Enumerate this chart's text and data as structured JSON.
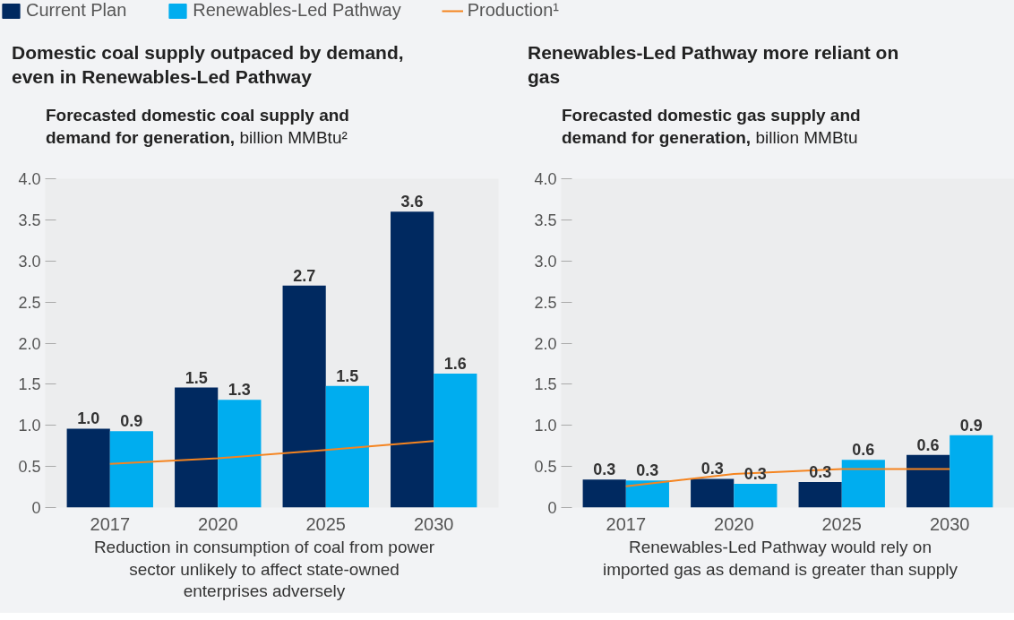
{
  "chart_data": [
    {
      "type": "bar",
      "title": "Domestic coal supply outpaced by demand, even in Renewables-Led Pathway",
      "subtitle": "Forecasted domestic coal supply and demand for generation,",
      "ylabel": "billion MMBtu²",
      "categories": [
        "2017",
        "2020",
        "2025",
        "2030"
      ],
      "series": [
        {
          "name": "Current Plan",
          "color": "#002960",
          "values": [
            0.96,
            1.46,
            2.7,
            3.6
          ],
          "value_labels": [
            "1.0",
            "1.5",
            "2.7",
            "3.6"
          ]
        },
        {
          "name": "Renewables-Led Pathway",
          "color": "#00adef",
          "values": [
            0.93,
            1.31,
            1.48,
            1.63
          ],
          "value_labels": [
            "0.9",
            "1.3",
            "1.5",
            "1.6"
          ]
        },
        {
          "name": "Production¹",
          "type": "line",
          "color": "#f5841f",
          "values": [
            0.53,
            0.6,
            0.7,
            0.81
          ]
        }
      ],
      "ylim": [
        0,
        4
      ],
      "yticks": [
        0,
        {
          "value": 0.5,
          "label": "0.5"
        },
        {
          "value": 1,
          "label": "1.0"
        },
        {
          "value": 1.5,
          "label": "1.5"
        },
        {
          "value": 2,
          "label": "2.0"
        },
        {
          "value": 2.5,
          "label": "2.5"
        },
        {
          "value": 3,
          "label": "3.0"
        },
        {
          "value": 3.5,
          "label": "3.5"
        },
        {
          "value": 4,
          "label": "4.0"
        }
      ],
      "grid": false,
      "legend": "top",
      "annotations": [
        "Reduction in consumption of coal from power sector unlikely to affect state-owned enterprises adversely"
      ]
    },
    {
      "type": "bar",
      "title": "Renewables-Led Pathway more reliant on gas",
      "subtitle": "Forecasted domestic gas supply and demand for generation,",
      "ylabel": "billion MMBtu",
      "categories": [
        "2017",
        "2020",
        "2025",
        "2030"
      ],
      "series": [
        {
          "color": "#002960",
          "values": [
            0.34,
            0.35,
            0.31,
            0.64
          ],
          "value_labels": [
            "0.3",
            "0.3",
            "0.3",
            "0.6"
          ]
        },
        {
          "color": "#00adef",
          "values": [
            0.33,
            0.29,
            0.58,
            0.88
          ],
          "value_labels": [
            "0.3",
            "0.3",
            "0.6",
            "0.9"
          ]
        },
        {
          "type": "line",
          "color": "#f5841f",
          "values": [
            0.26,
            0.41,
            0.47,
            0.47
          ]
        }
      ],
      "ylim": [
        0,
        4
      ],
      "yticks": [
        0,
        {
          "value": 0.5,
          "label": "0.5"
        },
        {
          "value": 1,
          "label": "1.0"
        },
        {
          "value": 1.5,
          "label": "1.5"
        },
        {
          "value": 2,
          "label": "2.0"
        },
        {
          "value": 2.5,
          "label": "2.5"
        },
        {
          "value": 3,
          "label": "3.0"
        },
        {
          "value": 3.5,
          "label": "3.5"
        },
        {
          "value": 4,
          "label": "4.0"
        }
      ],
      "grid": false,
      "legend": false,
      "annotations": [
        "Renewables-Led Pathway would rely on imported gas as demand is greater than supply"
      ]
    }
  ]
}
